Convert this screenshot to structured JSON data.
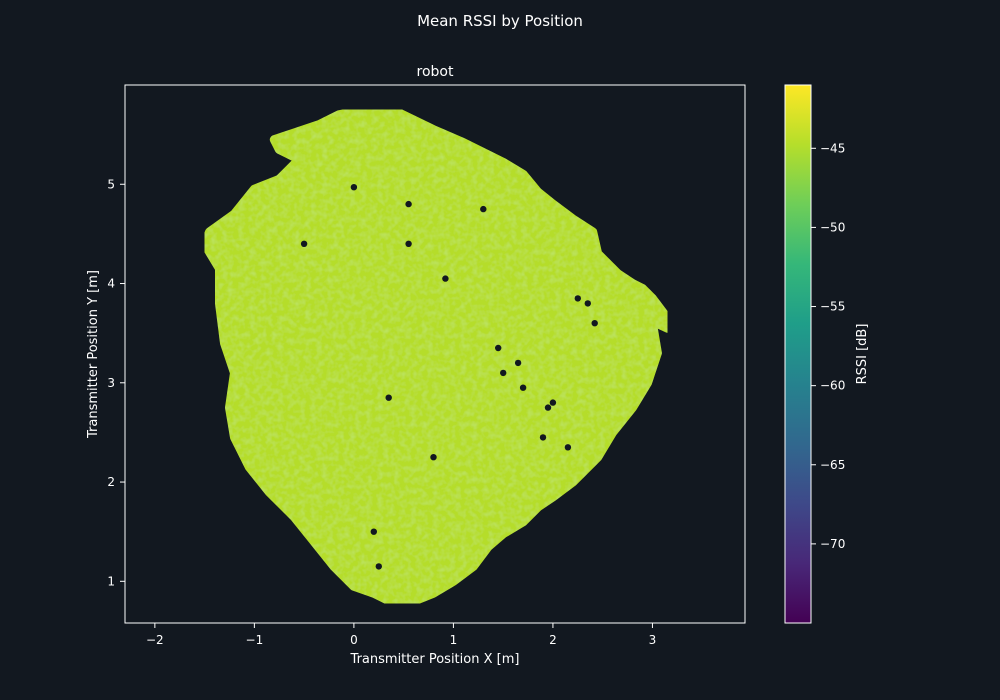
{
  "figure": {
    "suptitle": "Mean RSSI by Position",
    "background": "#121820",
    "foreground": "#ffffff"
  },
  "chart_data": {
    "type": "scatter",
    "title": "robot",
    "xlabel": "Transmitter Position X [m]",
    "ylabel": "Transmitter Position Y [m]",
    "xlim": [
      -2.3,
      3.93
    ],
    "ylim": [
      0.58,
      6.0
    ],
    "xticks": [
      -2,
      -1,
      0,
      1,
      2,
      3
    ],
    "yticks": [
      1,
      2,
      3,
      4,
      5
    ],
    "xtick_labels": [
      "−2",
      "−1",
      "0",
      "1",
      "2",
      "3"
    ],
    "ytick_labels": [
      "1",
      "2",
      "3",
      "4",
      "5"
    ],
    "grid": false,
    "colormap": "viridis",
    "marker_color": "#b5dd2b",
    "series": [
      {
        "kind": "filled-region-outline",
        "values": [
          [
            0.1,
            5.75
          ],
          [
            0.45,
            5.72
          ],
          [
            0.8,
            5.55
          ],
          [
            1.1,
            5.42
          ],
          [
            1.5,
            5.22
          ],
          [
            1.7,
            5.1
          ],
          [
            1.85,
            4.92
          ],
          [
            2.0,
            4.8
          ],
          [
            2.2,
            4.65
          ],
          [
            2.4,
            4.52
          ],
          [
            2.45,
            4.3
          ],
          [
            2.65,
            4.1
          ],
          [
            2.8,
            4.0
          ],
          [
            2.9,
            3.95
          ],
          [
            3.0,
            3.85
          ],
          [
            3.15,
            3.65
          ],
          [
            3.15,
            3.55
          ],
          [
            3.0,
            3.62
          ],
          [
            2.9,
            3.75
          ],
          [
            3.0,
            3.6
          ],
          [
            3.05,
            3.3
          ],
          [
            2.95,
            3.0
          ],
          [
            2.8,
            2.75
          ],
          [
            2.6,
            2.5
          ],
          [
            2.45,
            2.25
          ],
          [
            2.2,
            2.0
          ],
          [
            2.0,
            1.85
          ],
          [
            1.85,
            1.75
          ],
          [
            1.7,
            1.6
          ],
          [
            1.5,
            1.48
          ],
          [
            1.35,
            1.35
          ],
          [
            1.2,
            1.15
          ],
          [
            1.0,
            1.0
          ],
          [
            0.8,
            0.88
          ],
          [
            0.6,
            0.8
          ],
          [
            0.4,
            0.78
          ],
          [
            0.2,
            0.88
          ],
          [
            0.0,
            0.95
          ],
          [
            -0.2,
            1.15
          ],
          [
            -0.4,
            1.4
          ],
          [
            -0.6,
            1.65
          ],
          [
            -0.85,
            1.9
          ],
          [
            -1.05,
            2.15
          ],
          [
            -1.2,
            2.45
          ],
          [
            -1.25,
            2.75
          ],
          [
            -1.2,
            3.1
          ],
          [
            -1.3,
            3.4
          ],
          [
            -1.35,
            3.8
          ],
          [
            -1.35,
            4.15
          ],
          [
            -1.5,
            4.4
          ],
          [
            -1.45,
            4.52
          ],
          [
            -1.2,
            4.7
          ],
          [
            -1.0,
            4.95
          ],
          [
            -0.75,
            5.05
          ],
          [
            -0.55,
            5.25
          ],
          [
            -0.75,
            5.35
          ],
          [
            -0.8,
            5.45
          ],
          [
            -0.5,
            5.55
          ],
          [
            -0.35,
            5.6
          ],
          [
            -0.15,
            5.7
          ]
        ]
      }
    ],
    "holes": [
      [
        0.0,
        4.97
      ],
      [
        0.55,
        4.8
      ],
      [
        1.3,
        4.75
      ],
      [
        0.55,
        4.4
      ],
      [
        0.92,
        4.05
      ],
      [
        2.25,
        3.85
      ],
      [
        2.42,
        3.6
      ],
      [
        1.45,
        3.35
      ],
      [
        1.5,
        3.1
      ],
      [
        1.65,
        3.2
      ],
      [
        1.7,
        2.95
      ],
      [
        2.0,
        2.8
      ],
      [
        1.95,
        2.75
      ],
      [
        0.35,
        2.85
      ],
      [
        1.9,
        2.45
      ],
      [
        0.8,
        2.25
      ],
      [
        2.15,
        2.35
      ],
      [
        0.25,
        1.15
      ],
      [
        0.2,
        1.5
      ],
      [
        -0.5,
        4.4
      ],
      [
        2.35,
        3.8
      ]
    ],
    "colorbar": {
      "label": "RSSI [dB]",
      "range": [
        -75,
        -41
      ],
      "ticks": [
        -70,
        -65,
        -60,
        -55,
        -50,
        -45
      ],
      "tick_labels": [
        "−70",
        "−65",
        "−60",
        "−55",
        "−50",
        "−45"
      ],
      "stops": [
        "#440154",
        "#482878",
        "#3e4989",
        "#31688e",
        "#26828e",
        "#1f9e89",
        "#35b779",
        "#6ece58",
        "#b5de2b",
        "#fde725"
      ]
    }
  }
}
